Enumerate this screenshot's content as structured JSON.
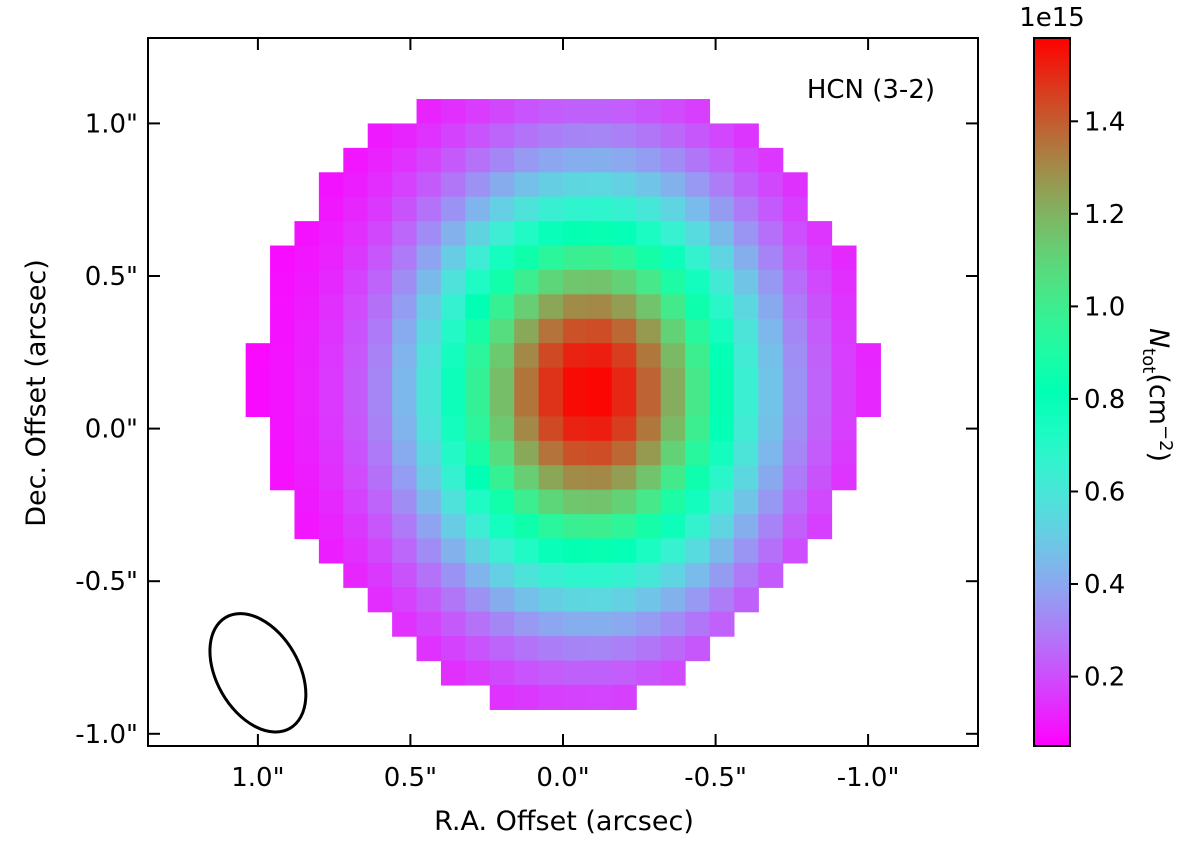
{
  "chart_data": {
    "type": "heatmap",
    "title": "",
    "panel_label": "HCN (3-2)",
    "xlabel": "R.A. Offset (arcsec)",
    "ylabel": "Dec. Offset (arcsec)",
    "xlim": [
      1.36,
      -1.36
    ],
    "ylim": [
      -1.04,
      1.28
    ],
    "x_ticks": [
      1.0,
      0.5,
      0.0,
      -0.5,
      -1.0
    ],
    "x_tick_labels": [
      "1.0\"",
      "0.5\"",
      "0.0\"",
      "-0.5\"",
      "-1.0\""
    ],
    "y_ticks": [
      1.0,
      0.5,
      0.0,
      -0.5,
      -1.0
    ],
    "y_tick_labels": [
      "1.0\"",
      "0.5\"",
      "0.0\"",
      "-0.5\"",
      "-1.0\""
    ],
    "grid": false,
    "pixel_size_arcsec": 0.08,
    "map": {
      "description_of_values": "column density N_tot in cm^-2, scale 1e15",
      "peak_ra": -0.09,
      "peak_dec": 0.12,
      "peak_value": 1.58,
      "floor_value": 0.05,
      "sigma_ra": 0.37,
      "sigma_dec": 0.45
    },
    "beam": {
      "center_ra": 1.0,
      "center_dec": -0.8,
      "major_arcsec": 0.42,
      "minor_arcsec": 0.27,
      "position_angle_deg": -60
    },
    "colorbar": {
      "label_main": "N",
      "label_sub": "tot",
      "label_unit": "(cm",
      "label_exp": "−2",
      "label_close": ")",
      "exponent_label": "1e15",
      "vmin": 0.05,
      "vmax": 1.58,
      "ticks": [
        0.2,
        0.4,
        0.6,
        0.8,
        1.0,
        1.2,
        1.4
      ],
      "tick_labels": [
        "0.2",
        "0.4",
        "0.6",
        "0.8",
        "1.0",
        "1.2",
        "1.4"
      ],
      "colormap": "rainbow"
    }
  }
}
